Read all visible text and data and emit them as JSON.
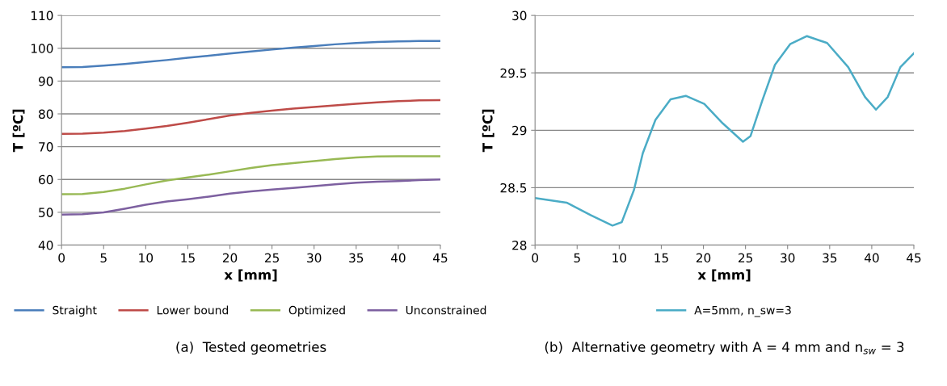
{
  "chart_data": [
    {
      "type": "line",
      "xlabel": "x [mm]",
      "ylabel": "T [ºC]",
      "xlim": [
        0,
        45
      ],
      "xticks": [
        0,
        5,
        10,
        15,
        20,
        25,
        30,
        35,
        40,
        45
      ],
      "ylim": [
        40,
        110
      ],
      "yticks": [
        40,
        50,
        60,
        70,
        80,
        90,
        100,
        110
      ],
      "grid": "y",
      "legend": "bottom",
      "marker": "none",
      "line_style": "solid",
      "x": [
        0,
        2.5,
        5,
        7.5,
        10,
        12.5,
        15,
        17.5,
        20,
        22.5,
        25,
        27.5,
        30,
        32.5,
        35,
        37.5,
        40,
        42.5,
        45
      ],
      "series": [
        {
          "name": "Straight",
          "color": "#4a7ebb",
          "values": [
            94.2,
            94.3,
            94.7,
            95.2,
            95.8,
            96.4,
            97.1,
            97.7,
            98.4,
            99.0,
            99.6,
            100.2,
            100.7,
            101.2,
            101.6,
            101.9,
            102.1,
            102.2,
            102.2
          ]
        },
        {
          "name": "Lower bound",
          "color": "#be4b48",
          "values": [
            73.9,
            74.0,
            74.3,
            74.8,
            75.5,
            76.3,
            77.3,
            78.4,
            79.5,
            80.3,
            81.0,
            81.6,
            82.1,
            82.6,
            83.1,
            83.5,
            83.9,
            84.1,
            84.2
          ]
        },
        {
          "name": "Optimized",
          "color": "#98b954",
          "values": [
            55.5,
            55.6,
            56.2,
            57.2,
            58.5,
            59.7,
            60.6,
            61.5,
            62.5,
            63.5,
            64.4,
            65.0,
            65.6,
            66.2,
            66.7,
            67.0,
            67.1,
            67.1,
            67.1
          ]
        },
        {
          "name": "Unconstrained",
          "color": "#7d60a0",
          "values": [
            49.3,
            49.4,
            50.0,
            51.1,
            52.3,
            53.3,
            54.0,
            54.8,
            55.7,
            56.4,
            56.9,
            57.4,
            58.0,
            58.5,
            59.0,
            59.3,
            59.5,
            59.8,
            60.0
          ]
        }
      ],
      "annotations": [
        "(a)  Tested geometries"
      ]
    },
    {
      "type": "line",
      "xlabel": "x [mm]",
      "ylabel": "T [ºC]",
      "xlim": [
        0,
        45
      ],
      "xticks": [
        0,
        5,
        10,
        15,
        20,
        25,
        30,
        35,
        40,
        45
      ],
      "ylim": [
        28,
        30
      ],
      "yticks": [
        28,
        28.5,
        29,
        29.5,
        30
      ],
      "grid": "y",
      "legend": "bottom",
      "marker": "none",
      "line_style": "solid",
      "x": [
        0,
        3.75,
        6.65,
        9.2,
        10.3,
        11.75,
        12.8,
        14.3,
        16.1,
        17.9,
        20.1,
        22.3,
        24.7,
        25.6,
        27.0,
        28.5,
        30.3,
        32.3,
        34.7,
        37.2,
        39.2,
        40.5,
        41.9,
        43.4,
        45
      ],
      "series": [
        {
          "name": "A=5mm, n_sw=3",
          "color": "#4bacc6",
          "values": [
            28.41,
            28.37,
            28.26,
            28.17,
            28.2,
            28.48,
            28.8,
            29.09,
            29.27,
            29.3,
            29.23,
            29.06,
            28.9,
            28.95,
            29.26,
            29.57,
            29.75,
            29.82,
            29.76,
            29.55,
            29.29,
            29.18,
            29.29,
            29.55,
            29.67
          ]
        }
      ],
      "annotations": [
        "(b)  Alternative geometry with A = 4 mm and n$_{sw}$ = 3"
      ]
    }
  ]
}
